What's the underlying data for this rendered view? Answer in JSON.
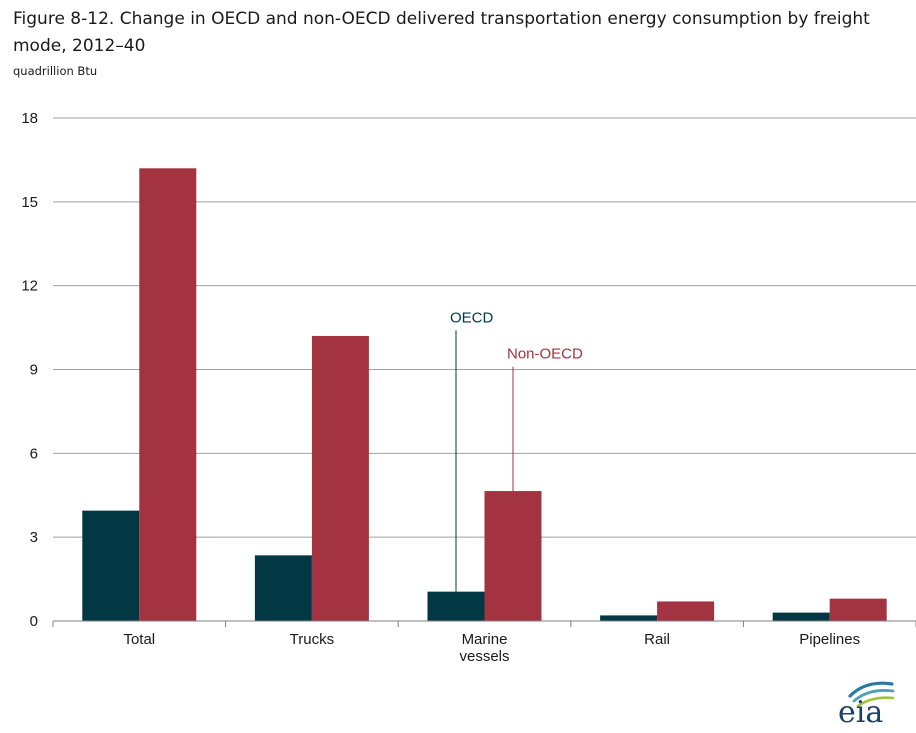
{
  "header": {
    "title": "Figure 8-12. Change in OECD and non-OECD delivered transportation energy consumption by freight mode, 2012–40",
    "unit": "quadrillion Btu"
  },
  "colors": {
    "oecd": "#023843",
    "non_oecd": "#a33340",
    "grid": "#a0a0a0",
    "axis": "#808080"
  },
  "logo": {
    "text": "eia"
  },
  "chart_data": {
    "type": "bar",
    "categories": [
      [
        "Total"
      ],
      [
        "Trucks"
      ],
      [
        "Marine",
        "vessels"
      ],
      [
        "Rail"
      ],
      [
        "Pipelines"
      ]
    ],
    "series": [
      {
        "name": "OECD",
        "values": [
          3.95,
          2.35,
          1.05,
          0.2,
          0.3
        ]
      },
      {
        "name": "Non-OECD",
        "values": [
          16.2,
          10.2,
          4.65,
          0.7,
          0.8
        ]
      }
    ],
    "ylim": [
      0,
      18
    ],
    "yticks": [
      0,
      3,
      6,
      9,
      12,
      15,
      18
    ],
    "grid": true,
    "xlabel": "",
    "ylabel": "",
    "annotations": [
      {
        "series": 0,
        "category": 2,
        "text": "OECD",
        "level": 10.4
      },
      {
        "series": 1,
        "category": 2,
        "text": "Non-OECD",
        "level": 9.1
      }
    ]
  }
}
